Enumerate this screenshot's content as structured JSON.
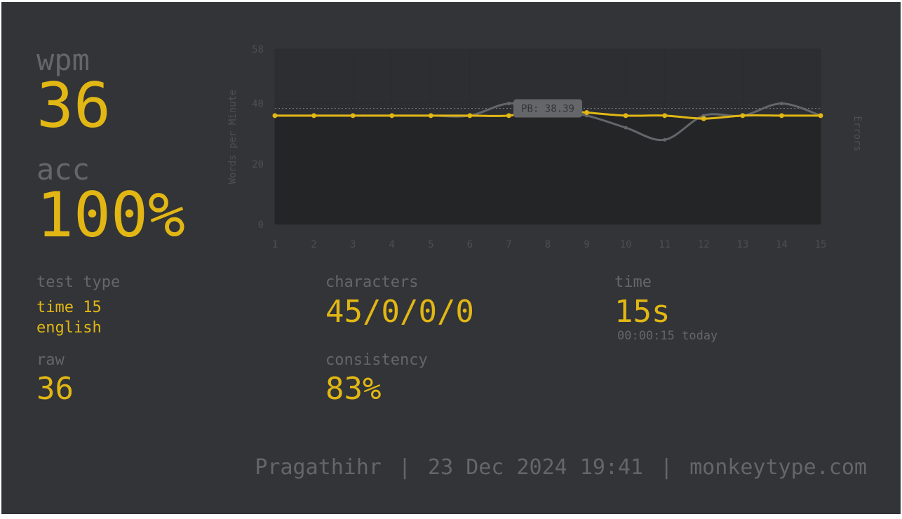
{
  "colors": {
    "background": "#323437",
    "accent": "#e2b714",
    "muted": "#646669"
  },
  "stats": {
    "wpm_label": "wpm",
    "wpm": "36",
    "acc_label": "acc",
    "acc": "100%",
    "test_type_label": "test type",
    "test_type_line1": "time 15",
    "test_type_line2": "english",
    "raw_label": "raw",
    "raw": "36",
    "characters_label": "characters",
    "characters": "45/0/0/0",
    "consistency_label": "consistency",
    "consistency": "83%",
    "time_label": "time",
    "time": "15s",
    "time_detail": "00:00:15 today"
  },
  "footer": {
    "username": "Pragathihr",
    "date": "23 Dec 2024 19:41",
    "site": "monkeytype.com",
    "separator": "|"
  },
  "chart_data": {
    "type": "line",
    "ylabel": "Words per Minute",
    "y2label": "Errors",
    "ylim": [
      0,
      58
    ],
    "y_ticks": [
      0,
      20,
      40,
      58
    ],
    "x": [
      1,
      2,
      3,
      4,
      5,
      6,
      7,
      8,
      9,
      10,
      11,
      12,
      13,
      14,
      15
    ],
    "series": [
      {
        "values": [
          36,
          36,
          36,
          36,
          36,
          36,
          36,
          38,
          37,
          36,
          36,
          35,
          36,
          36,
          36
        ]
      },
      {
        "values": [
          36,
          36,
          36,
          36,
          36,
          36,
          40,
          38,
          36,
          32,
          28,
          36,
          36,
          40,
          36
        ]
      }
    ],
    "annotation": {
      "label": "PB: 38.39",
      "y": 38.39
    }
  }
}
